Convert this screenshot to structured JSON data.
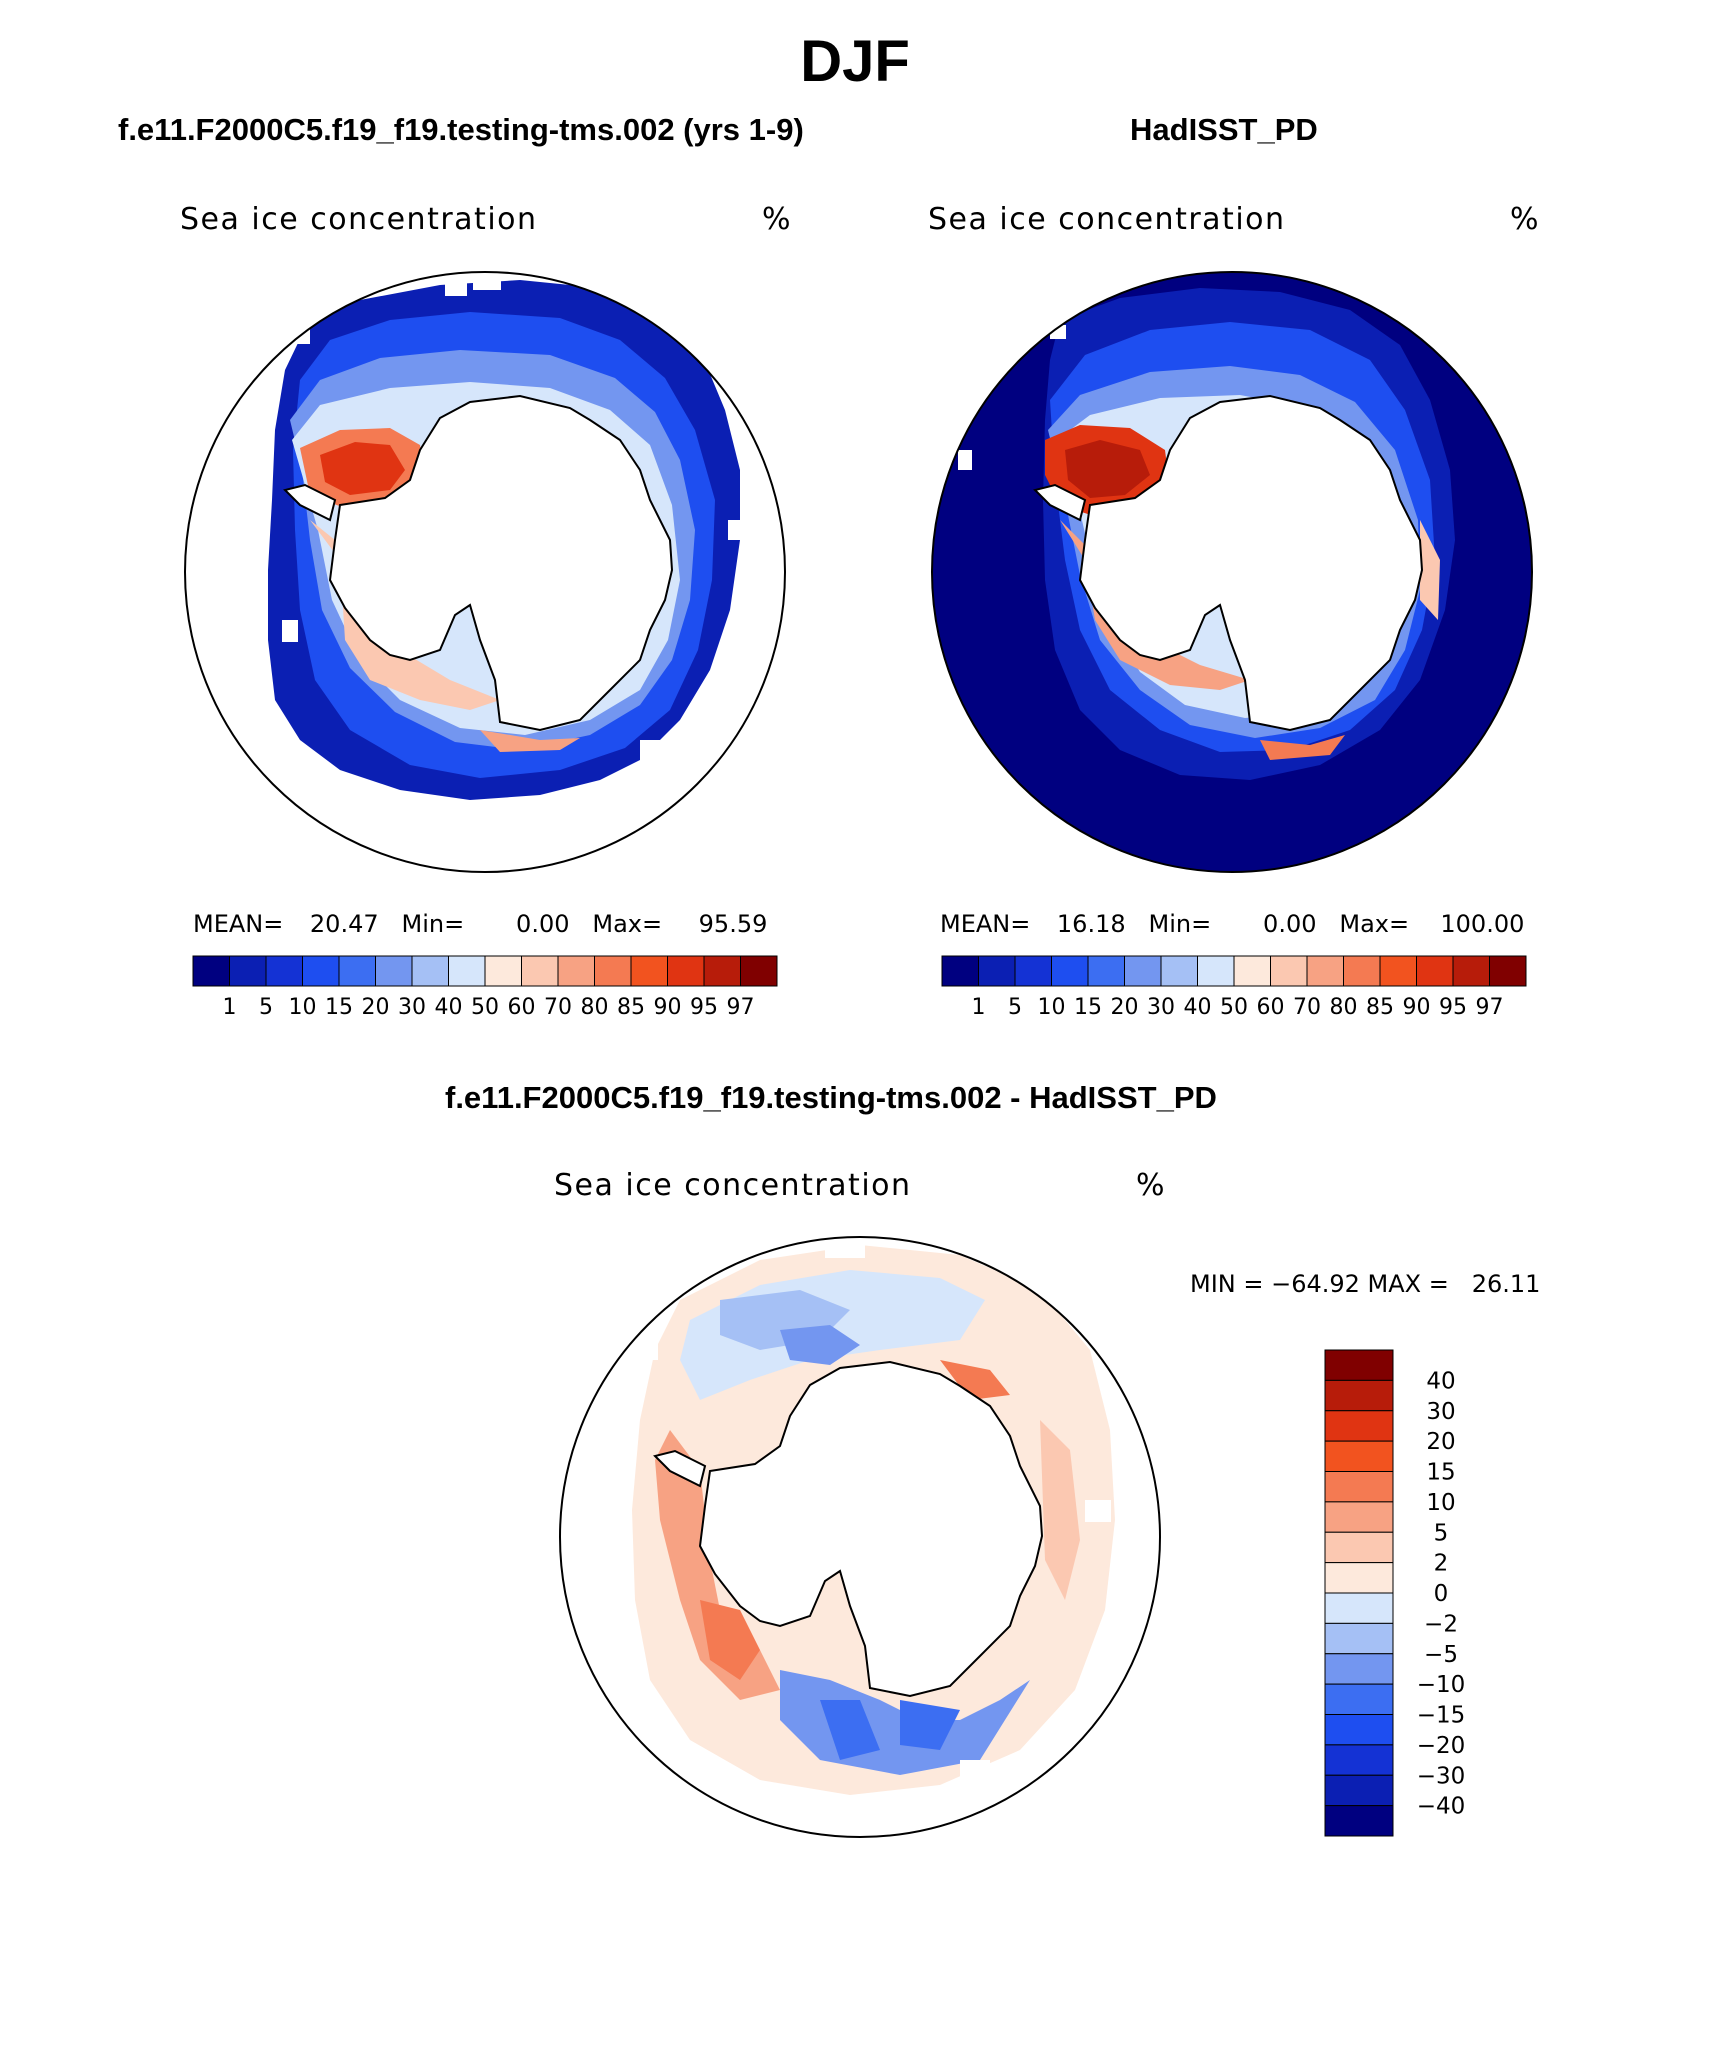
{
  "title": "DJF",
  "panels": [
    {
      "id": "model",
      "title": "f.e11.F2000C5.f19_f19.testing-tms.002 (yrs 1-9)",
      "variable": "Sea ice concentration",
      "units": "%",
      "mean_label": "MEAN=",
      "mean": "20.47",
      "min_label": "Min=",
      "min": "0.00",
      "max_label": "Max=",
      "max": "95.59"
    },
    {
      "id": "obs",
      "title": "HadISST_PD",
      "variable": "Sea ice concentration",
      "units": "%",
      "mean_label": "MEAN=",
      "mean": "16.18",
      "min_label": "Min=",
      "min": "0.00",
      "max_label": "Max=",
      "max": "100.00"
    },
    {
      "id": "diff",
      "title": "f.e11.F2000C5.f19_f19.testing-tms.002 - HadISST_PD",
      "variable": "Sea ice concentration",
      "units": "%",
      "minmax_text": "MIN = −64.92 MAX =   26.11"
    }
  ],
  "abs_colorbar": {
    "levels": [
      "1",
      "5",
      "10",
      "15",
      "20",
      "30",
      "40",
      "50",
      "60",
      "70",
      "80",
      "85",
      "90",
      "95",
      "97"
    ],
    "colors": [
      "#000080",
      "#0b1fb3",
      "#1432d4",
      "#1e4ef0",
      "#3c6ef2",
      "#7396f0",
      "#a5c0f5",
      "#d6e6fb",
      "#fde9dc",
      "#fbc8b1",
      "#f7a283",
      "#f47a52",
      "#f2531f",
      "#e03412",
      "#b71c0a",
      "#800000"
    ]
  },
  "diff_colorbar": {
    "levels": [
      "40",
      "30",
      "20",
      "15",
      "10",
      "5",
      "2",
      "0",
      "−2",
      "−5",
      "−10",
      "−15",
      "−20",
      "−30",
      "−40"
    ],
    "colors": [
      "#800000",
      "#b71c0a",
      "#e03412",
      "#f2531f",
      "#f47a52",
      "#f7a283",
      "#fbc8b1",
      "#fde9dc",
      "#d6e6fb",
      "#a5c0f5",
      "#7396f0",
      "#3c6ef2",
      "#1e4ef0",
      "#1432d4",
      "#0b1fb3",
      "#000080"
    ]
  }
}
